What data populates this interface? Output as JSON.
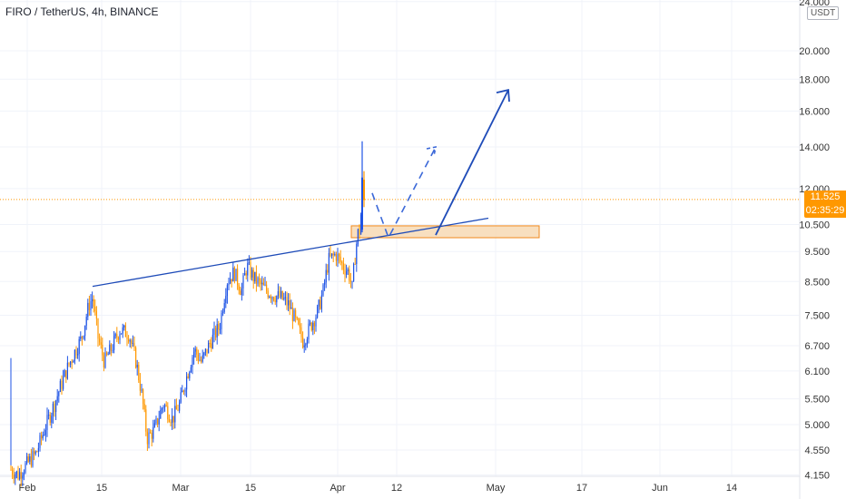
{
  "header": {
    "title": "FIRO / TetherUS, 4h, BINANCE"
  },
  "axis": {
    "unit": "USDT"
  },
  "price_tag": {
    "price": "11.525",
    "countdown": "02:35:29"
  },
  "colors": {
    "up": "#1e53e5",
    "down": "#ff9800",
    "trend": "#1e4bb8",
    "zone_fill": "#f7d9b4",
    "zone_border": "#f0891c",
    "price_line": "#ff9800"
  },
  "chart_data": {
    "type": "candlestick",
    "title": "FIRO / TetherUS, 4h, BINANCE",
    "yscale": "log",
    "ylim": [
      4.15,
      24.0
    ],
    "y_ticks": [
      "24.000",
      "20.000",
      "18.000",
      "16.000",
      "14.000",
      "12.000",
      "10.500",
      "9.500",
      "8.500",
      "7.500",
      "6.700",
      "6.100",
      "5.500",
      "5.000",
      "4.550",
      "4.150"
    ],
    "x_ticks": [
      "Feb",
      "15",
      "Mar",
      "15",
      "Apr",
      "12",
      "May",
      "17",
      "Jun",
      "14"
    ],
    "last_price": 11.525,
    "price_path": [
      [
        0,
        6.3
      ],
      [
        4,
        4.7
      ],
      [
        10,
        4.25
      ],
      [
        20,
        4.15
      ],
      [
        40,
        4.5
      ],
      [
        60,
        5.4
      ],
      [
        75,
        6.2
      ],
      [
        90,
        6.9
      ],
      [
        98,
        7.8
      ],
      [
        102,
        8.0
      ],
      [
        108,
        6.9
      ],
      [
        115,
        6.3
      ],
      [
        122,
        6.6
      ],
      [
        132,
        7.1
      ],
      [
        142,
        7.0
      ],
      [
        150,
        6.3
      ],
      [
        156,
        5.6
      ],
      [
        162,
        4.75
      ],
      [
        170,
        4.9
      ],
      [
        180,
        5.4
      ],
      [
        190,
        5.1
      ],
      [
        198,
        5.4
      ],
      [
        206,
        6.0
      ],
      [
        214,
        6.6
      ],
      [
        222,
        6.3
      ],
      [
        232,
        6.8
      ],
      [
        242,
        7.2
      ],
      [
        250,
        8.5
      ],
      [
        258,
        8.8
      ],
      [
        266,
        8.2
      ],
      [
        272,
        9.0
      ],
      [
        280,
        8.6
      ],
      [
        290,
        8.3
      ],
      [
        300,
        8.1
      ],
      [
        310,
        8.0
      ],
      [
        318,
        7.8
      ],
      [
        326,
        7.3
      ],
      [
        334,
        6.8
      ],
      [
        342,
        7.2
      ],
      [
        350,
        7.6
      ],
      [
        356,
        8.2
      ],
      [
        362,
        9.2
      ],
      [
        370,
        9.4
      ],
      [
        378,
        9.0
      ],
      [
        384,
        8.8
      ],
      [
        388,
        8.3
      ],
      [
        392,
        9.6
      ],
      [
        395,
        10.3
      ],
      [
        397,
        10.2
      ],
      [
        399,
        12.5
      ],
      [
        401,
        11.5
      ]
    ],
    "annotations": {
      "trendline": {
        "from": [
          102,
          8.35
        ],
        "to": [
          538,
          10.75
        ]
      },
      "zone": {
        "x": [
          387,
          594
        ],
        "y": [
          10.0,
          10.45
        ]
      },
      "dashed_projection": [
        [
          410,
          11.8
        ],
        [
          428,
          10.0
        ],
        [
          480,
          14.0
        ]
      ],
      "solid_projection": [
        [
          480,
          10.1
        ],
        [
          560,
          17.3
        ]
      ]
    }
  }
}
